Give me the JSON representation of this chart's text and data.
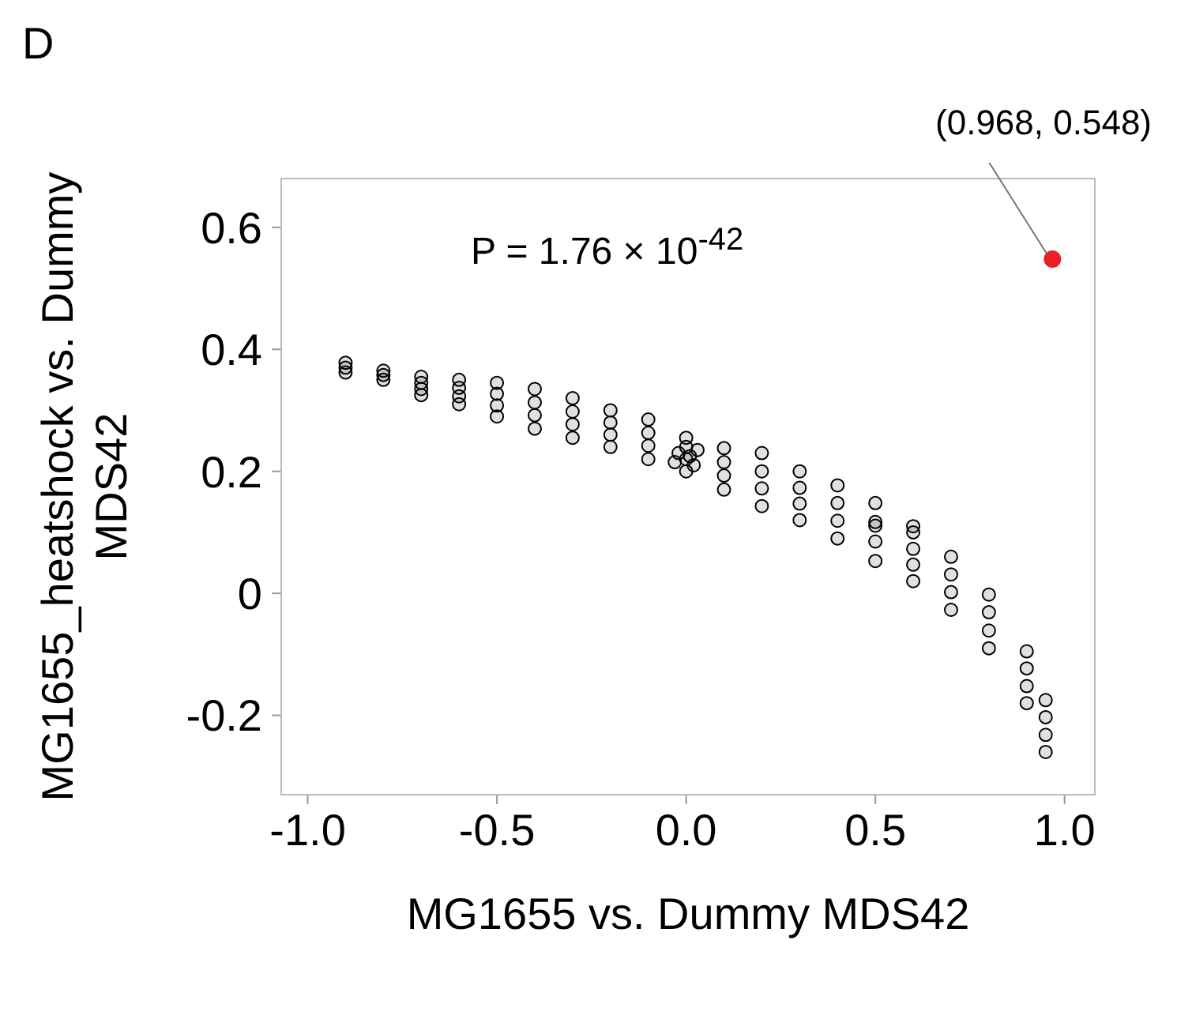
{
  "chart_data": {
    "type": "scatter",
    "xlabel": "MG1655 vs. Dummy MDS42",
    "ylabel": "MG1655_heatshock vs. Dummy MDS42",
    "annotations": [
      "D",
      "P = 1.76 × 10$^{-42}$",
      {
        "text": "(0.968, 0.548)",
        "x": 0.968,
        "y": 0.548
      }
    ],
    "xlim": [
      -1.07,
      1.08
    ],
    "xticks": [
      {
        "value": -1,
        "label": "-1.0"
      },
      {
        "value": -0.5,
        "label": "-0.5"
      },
      {
        "value": 0,
        "label": "0.0"
      },
      {
        "value": 0.5,
        "label": "0.5"
      },
      {
        "value": 1,
        "label": "1.0"
      }
    ],
    "ylim": [
      -0.33,
      0.68
    ],
    "yticks": [
      -0.2,
      0,
      0.2,
      0.4,
      0.6
    ],
    "grid": false,
    "legend": false,
    "marker": "circle",
    "series": [
      {
        "color": "#000000",
        "x": [
          -0.9,
          -0.9,
          -0.9,
          -0.8,
          -0.8,
          -0.8,
          -0.7,
          -0.7,
          -0.7,
          -0.7,
          -0.6,
          -0.6,
          -0.6,
          -0.6,
          -0.5,
          -0.5,
          -0.5,
          -0.5,
          -0.4,
          -0.4,
          -0.4,
          -0.4,
          -0.3,
          -0.3,
          -0.3,
          -0.3,
          -0.2,
          -0.2,
          -0.2,
          -0.2,
          -0.1,
          -0.1,
          -0.1,
          -0.1,
          0,
          0,
          0,
          0,
          -0.02,
          0.02,
          -0.03,
          0.03,
          0.01,
          0.1,
          0.1,
          0.1,
          0.1,
          0.2,
          0.2,
          0.2,
          0.2,
          0.3,
          0.3,
          0.3,
          0.3,
          0.4,
          0.4,
          0.4,
          0.4,
          0.5,
          0.5,
          0.5,
          0.5,
          0.5,
          0.6,
          0.6,
          0.6,
          0.6,
          0.6,
          0.7,
          0.7,
          0.7,
          0.7,
          0.8,
          0.8,
          0.8,
          0.8,
          0.9,
          0.9,
          0.9,
          0.9,
          0.95,
          0.95,
          0.95,
          0.95
        ],
        "values": [
          0.362,
          0.37,
          0.378,
          0.35,
          0.358,
          0.365,
          0.325,
          0.335,
          0.345,
          0.355,
          0.31,
          0.323,
          0.337,
          0.35,
          0.29,
          0.308,
          0.327,
          0.345,
          0.27,
          0.292,
          0.313,
          0.335,
          0.255,
          0.277,
          0.298,
          0.32,
          0.24,
          0.26,
          0.28,
          0.3,
          0.22,
          0.242,
          0.263,
          0.285,
          0.2,
          0.22,
          0.24,
          0.255,
          0.23,
          0.21,
          0.215,
          0.235,
          0.225,
          0.17,
          0.193,
          0.215,
          0.238,
          0.143,
          0.172,
          0.2,
          0.23,
          0.12,
          0.147,
          0.173,
          0.2,
          0.09,
          0.119,
          0.148,
          0.177,
          0.053,
          0.085,
          0.117,
          0.148,
          0.111,
          0.02,
          0.047,
          0.073,
          0.1,
          0.11,
          -0.027,
          0.002,
          0.031,
          0.06,
          -0.09,
          -0.061,
          -0.031,
          -0.002,
          -0.18,
          -0.152,
          -0.123,
          -0.095,
          -0.26,
          -0.232,
          -0.203,
          -0.175
        ]
      },
      {
        "color": "#e8202a",
        "x": [
          0.968
        ],
        "values": [
          0.548
        ]
      }
    ]
  }
}
